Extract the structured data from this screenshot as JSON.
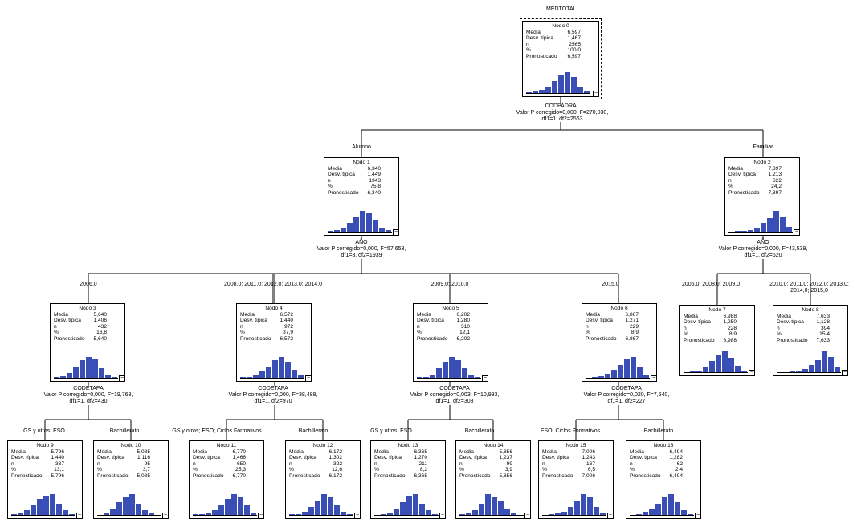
{
  "title": "MEDTOTAL",
  "labels": {
    "media": "Media",
    "desv": "Desv. típica",
    "n": "n",
    "pct": "%",
    "pron": "Pronosticado"
  },
  "colors": {
    "bar": "#3a4fb5"
  },
  "nodes": [
    {
      "id": 0,
      "name": "Nodo 0",
      "media": "6,597",
      "desv": "1,467",
      "n": "2565",
      "pct": "100,0",
      "pron": "6,597",
      "hist": [
        1,
        2,
        4,
        8,
        15,
        22,
        26,
        20,
        8,
        3
      ]
    },
    {
      "id": 1,
      "name": "Nodo 1",
      "media": "6,340",
      "desv": "1,449",
      "n": "1943",
      "pct": "75,8",
      "pron": "6,340",
      "hist": [
        1,
        2,
        5,
        10,
        18,
        24,
        22,
        14,
        5,
        2
      ]
    },
    {
      "id": 2,
      "name": "Nodo 2",
      "media": "7,397",
      "desv": "1,213",
      "n": "622",
      "pct": "24,2",
      "pron": "7,397",
      "hist": [
        0,
        1,
        1,
        2,
        5,
        10,
        16,
        24,
        18,
        6
      ]
    },
    {
      "id": 3,
      "name": "Nodo 3",
      "media": "5,640",
      "desv": "1,406",
      "n": "432",
      "pct": "16,8",
      "pron": "5,640",
      "hist": [
        1,
        2,
        6,
        14,
        22,
        26,
        24,
        12,
        4,
        1
      ]
    },
    {
      "id": 4,
      "name": "Nodo 4",
      "media": "6,572",
      "desv": "1,440",
      "n": "972",
      "pct": "37,9",
      "pron": "6,572",
      "hist": [
        1,
        1,
        3,
        8,
        14,
        22,
        26,
        20,
        10,
        3
      ]
    },
    {
      "id": 5,
      "name": "Nodo 5",
      "media": "6,202",
      "desv": "1,280",
      "n": "310",
      "pct": "12,1",
      "pron": "6,202",
      "hist": [
        1,
        1,
        4,
        12,
        20,
        26,
        22,
        12,
        4,
        1
      ]
    },
    {
      "id": 6,
      "name": "Nodo 6",
      "media": "6,867",
      "desv": "1,271",
      "n": "229",
      "pct": "8,9",
      "pron": "6,867",
      "hist": [
        0,
        1,
        2,
        5,
        10,
        16,
        24,
        26,
        14,
        4
      ]
    },
    {
      "id": 7,
      "name": "Nodo 7",
      "media": "6,988",
      "desv": "1,250",
      "n": "228",
      "pct": "8,9",
      "pron": "6,988",
      "hist": [
        0,
        1,
        2,
        6,
        14,
        22,
        26,
        18,
        8,
        2
      ]
    },
    {
      "id": 8,
      "name": "Nodo 8",
      "media": "7,633",
      "desv": "1,128",
      "n": "394",
      "pct": "15,4",
      "pron": "7,633",
      "hist": [
        0,
        0,
        1,
        2,
        4,
        8,
        14,
        24,
        18,
        6
      ]
    },
    {
      "id": 9,
      "name": "Nodo 9",
      "media": "5,796",
      "desv": "1,440",
      "n": "337",
      "pct": "13,1",
      "pron": "5,796",
      "hist": [
        1,
        2,
        6,
        12,
        20,
        24,
        26,
        14,
        6,
        1
      ]
    },
    {
      "id": 10,
      "name": "Nodo 10",
      "media": "5,085",
      "desv": "1,116",
      "n": "95",
      "pct": "3,7",
      "pron": "5,085",
      "hist": [
        0,
        2,
        8,
        16,
        22,
        26,
        14,
        6,
        2,
        0
      ]
    },
    {
      "id": 11,
      "name": "Nodo 11",
      "media": "6,770",
      "desv": "1,466",
      "n": "650",
      "pct": "25,3",
      "pron": "6,770",
      "hist": [
        1,
        1,
        3,
        6,
        12,
        20,
        26,
        22,
        12,
        3
      ]
    },
    {
      "id": 12,
      "name": "Nodo 12",
      "media": "6,172",
      "desv": "1,302",
      "n": "322",
      "pct": "12,6",
      "pron": "6,172",
      "hist": [
        1,
        1,
        4,
        10,
        18,
        26,
        22,
        12,
        4,
        1
      ]
    },
    {
      "id": 13,
      "name": "Nodo 13",
      "media": "6,365",
      "desv": "1,270",
      "n": "211",
      "pct": "8,2",
      "pron": "6,365",
      "hist": [
        0,
        1,
        3,
        8,
        16,
        24,
        26,
        14,
        6,
        1
      ]
    },
    {
      "id": 14,
      "name": "Nodo 14",
      "media": "5,856",
      "desv": "1,237",
      "n": "99",
      "pct": "3,9",
      "pron": "5,856",
      "hist": [
        1,
        2,
        6,
        14,
        26,
        22,
        18,
        8,
        3,
        0
      ]
    },
    {
      "id": 15,
      "name": "Nodo 15",
      "media": "7,006",
      "desv": "1,243",
      "n": "167",
      "pct": "6,5",
      "pron": "7,006",
      "hist": [
        0,
        1,
        2,
        4,
        10,
        18,
        26,
        22,
        10,
        2
      ]
    },
    {
      "id": 16,
      "name": "Nodo 16",
      "media": "6,494",
      "desv": "1,282",
      "n": "62",
      "pct": "2,4",
      "pron": "6,494",
      "hist": [
        0,
        1,
        4,
        8,
        14,
        22,
        26,
        16,
        6,
        1
      ]
    }
  ],
  "splits": [
    {
      "var": "CODPADRAL",
      "stat": "Valor P corregido=0,000, F=270,030,",
      "df": "df1=1, df2=2563"
    },
    {
      "var": "AÑO",
      "stat": "Valor P corregido=0,000, F=57,653,",
      "df": "df1=3, df2=1939"
    },
    {
      "var": "AÑO",
      "stat": "Valor P corregido=0,000, F=43,539,",
      "df": "df1=1, df2=620"
    },
    {
      "var": "CODETAPA",
      "stat": "Valor P corregido=0,000, F=19,763,",
      "df": "df1=1, df2=430"
    },
    {
      "var": "CODETAPA",
      "stat": "Valor P corregido=0,000, F=38,488,",
      "df": "df1=1, df2=970"
    },
    {
      "var": "CODETAPA",
      "stat": "Valor P corregido=0,003, F=10,993,",
      "df": "df1=1, df2=308"
    },
    {
      "var": "CODETAPA",
      "stat": "Valor P corregido=0,020, F=7,540,",
      "df": "df1=1, df2=227"
    }
  ],
  "branches": {
    "alumno": "Alumno",
    "familiar": "Familiar",
    "y2006": "2006,0",
    "y2008": "2008,0; 2011,0; 2012,0; 2013,0; 2014,0",
    "y2009": "2009,0; 2010,0",
    "y2015": "2015,0",
    "f2006": "2006,0; 2008,0; 2009,0",
    "f2010a": "2010,0; 2011,0; 2012,0; 2013,0;",
    "f2010b": "2014,0; 2015,0",
    "gs3": "GS y otros; ESO",
    "bach3": "Bachillerato",
    "gs4": "GS y otros; ESO; Ciclos Formativos",
    "bach4": "Bachillerato",
    "gs5": "GS y otros; ESO",
    "bach5": "Bachillerato",
    "eso6": "ESO; Ciclos Formativos",
    "bach6": "Bachillerato"
  }
}
